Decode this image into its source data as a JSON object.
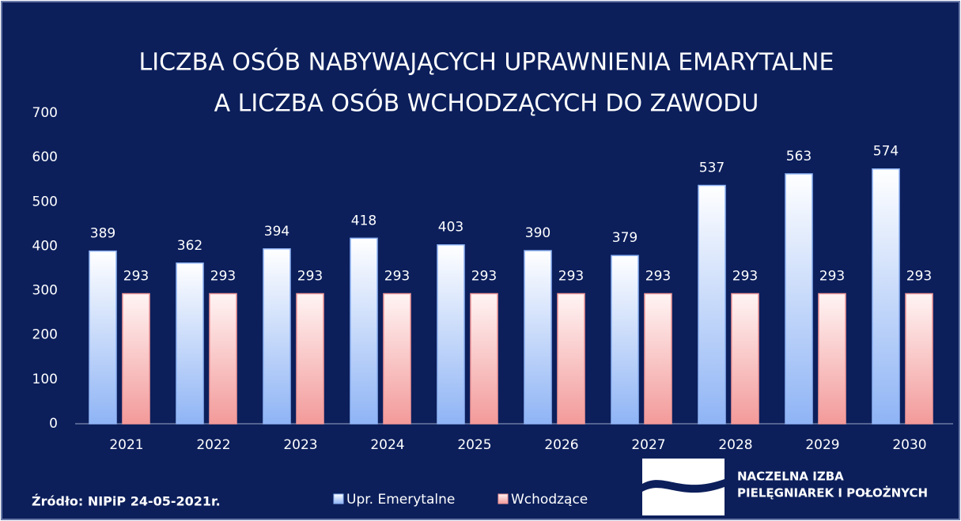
{
  "chart_data": {
    "type": "bar",
    "title": [
      "LICZBA OSÓB NABYWAJĄCYCH UPRAWNIENIA EMARYTALNE",
      "A LICZBA OSÓB WCHODZĄCYCH DO ZAWODU"
    ],
    "categories": [
      "2021",
      "2022",
      "2023",
      "2024",
      "2025",
      "2026",
      "2027",
      "2028",
      "2029",
      "2030"
    ],
    "series": [
      {
        "name": "Upr. Emerytalne",
        "color": "#8fb4f5",
        "values": [
          389,
          362,
          394,
          418,
          403,
          390,
          379,
          537,
          563,
          574
        ]
      },
      {
        "name": "Wchodzące",
        "color": "#f39a9a",
        "values": [
          293,
          293,
          293,
          293,
          293,
          293,
          293,
          293,
          293,
          293
        ]
      }
    ],
    "ylim": [
      0,
      700
    ],
    "yticks": [
      0,
      100,
      200,
      300,
      400,
      500,
      600,
      700
    ],
    "grid": false,
    "legend": "bottom",
    "source": "Źródło: NIPiP 24-05-2021r.",
    "logo": [
      "NACZELNA IZBA",
      "PIELĘGNIAREK I POŁOŻNYCH"
    ]
  }
}
